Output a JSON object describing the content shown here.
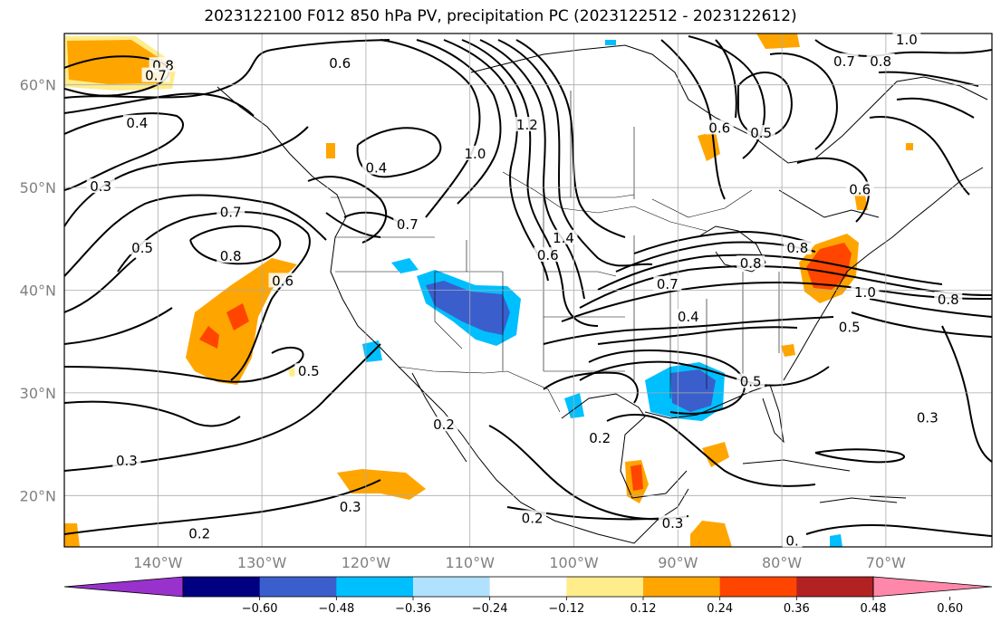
{
  "title": "2023122100 F012 850 hPa PV, precipitation PC (2023122512 - 2023122612)",
  "lat_labels": [
    {
      "text": "60°N",
      "lat": 60
    },
    {
      "text": "50°N",
      "lat": 50
    },
    {
      "text": "40°N",
      "lat": 40
    },
    {
      "text": "30°N",
      "lat": 30
    },
    {
      "text": "20°N",
      "lat": 20
    }
  ],
  "lon_labels": [
    {
      "text": "140°W",
      "lon": -140
    },
    {
      "text": "130°W",
      "lon": -130
    },
    {
      "text": "120°W",
      "lon": -120
    },
    {
      "text": "110°W",
      "lon": -110
    },
    {
      "text": "100°W",
      "lon": -100
    },
    {
      "text": "90°W",
      "lon": -90
    },
    {
      "text": "80°W",
      "lon": -80
    },
    {
      "text": "70°W",
      "lon": -70
    }
  ],
  "colorbar": {
    "ticks": [
      "−0.60",
      "−0.48",
      "−0.36",
      "−0.24",
      "−0.12",
      "0.12",
      "0.24",
      "0.36",
      "0.48",
      "0.60"
    ],
    "colors": [
      "#9932CC",
      "#000080",
      "#3A5FCD",
      "#00BFFF",
      "#B0E2FF",
      "#FFFFFF",
      "#FFEC8B",
      "#FFA500",
      "#FF4500",
      "#B22222",
      "#FF88AA"
    ]
  },
  "contour_labels": [
    {
      "text": "0.8",
      "lon": -139.5,
      "lat": 61.8
    },
    {
      "text": "0.7",
      "lon": -140.2,
      "lat": 60.8
    },
    {
      "text": "0.6",
      "lon": -122.5,
      "lat": 62.0
    },
    {
      "text": "0.4",
      "lon": -142.0,
      "lat": 56.2
    },
    {
      "text": "0.3",
      "lon": -145.5,
      "lat": 50.0
    },
    {
      "text": "0.4",
      "lon": -119.0,
      "lat": 51.8
    },
    {
      "text": "0.7",
      "lon": -133.0,
      "lat": 47.5
    },
    {
      "text": "0.8",
      "lon": -133.0,
      "lat": 43.2
    },
    {
      "text": "0.6",
      "lon": -128.0,
      "lat": 40.8
    },
    {
      "text": "0.5",
      "lon": -141.5,
      "lat": 44.0
    },
    {
      "text": "0.7",
      "lon": -116.0,
      "lat": 46.3
    },
    {
      "text": "0.5",
      "lon": -125.5,
      "lat": 32.0
    },
    {
      "text": "1.0",
      "lon": -109.5,
      "lat": 53.2
    },
    {
      "text": "1.2",
      "lon": -104.5,
      "lat": 56.0
    },
    {
      "text": "1.4",
      "lon": -101.0,
      "lat": 45.0
    },
    {
      "text": "0.6",
      "lon": -102.5,
      "lat": 43.3
    },
    {
      "text": "0.7",
      "lon": -91.0,
      "lat": 40.5
    },
    {
      "text": "0.4",
      "lon": -89.0,
      "lat": 37.3
    },
    {
      "text": "0.5",
      "lon": -83.0,
      "lat": 31.0
    },
    {
      "text": "0.2",
      "lon": -112.5,
      "lat": 26.8
    },
    {
      "text": "0.2",
      "lon": -97.5,
      "lat": 25.5
    },
    {
      "text": "0.3",
      "lon": -143.0,
      "lat": 23.3
    },
    {
      "text": "0.3",
      "lon": -121.5,
      "lat": 18.8
    },
    {
      "text": "0.2",
      "lon": -136.0,
      "lat": 16.2
    },
    {
      "text": "0.2",
      "lon": -104.0,
      "lat": 17.7
    },
    {
      "text": "0.3",
      "lon": -90.5,
      "lat": 17.2
    },
    {
      "text": "0.6",
      "lon": -86.0,
      "lat": 55.7
    },
    {
      "text": "0.5",
      "lon": -82.0,
      "lat": 55.2
    },
    {
      "text": "0.7",
      "lon": -74.0,
      "lat": 62.2
    },
    {
      "text": "0.8",
      "lon": -70.5,
      "lat": 62.2
    },
    {
      "text": "1.0",
      "lon": -68.0,
      "lat": 64.3
    },
    {
      "text": "0.6",
      "lon": -72.5,
      "lat": 49.7
    },
    {
      "text": "0.8",
      "lon": -78.5,
      "lat": 44.0
    },
    {
      "text": "0.8",
      "lon": -83.0,
      "lat": 42.5
    },
    {
      "text": "1.0",
      "lon": -72.0,
      "lat": 39.7
    },
    {
      "text": "0.8",
      "lon": -64.0,
      "lat": 39.0
    },
    {
      "text": "0.5",
      "lon": -73.5,
      "lat": 36.3
    },
    {
      "text": "0.3",
      "lon": -66.0,
      "lat": 27.5
    },
    {
      "text": "0.",
      "lon": -79.0,
      "lat": 15.5
    }
  ]
}
